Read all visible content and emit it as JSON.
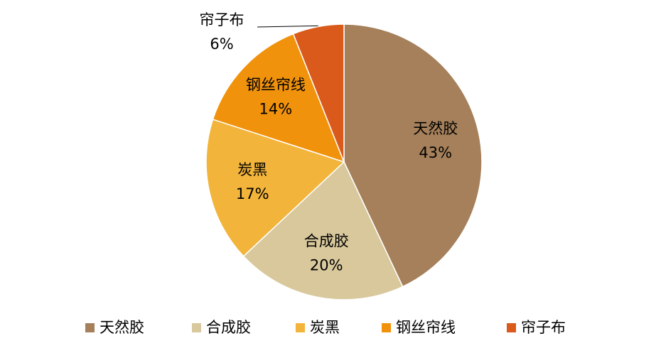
{
  "chart_data": {
    "type": "pie",
    "categories": [
      "天然胶",
      "合成胶",
      "炭黑",
      "钢丝帘线",
      "帘子布"
    ],
    "values": [
      43,
      20,
      17,
      14,
      6
    ],
    "value_labels": [
      "43%",
      "20%",
      "17%",
      "14%",
      "6%"
    ],
    "colors": [
      "#A5805A",
      "#D8C89C",
      "#F2B43A",
      "#F0920C",
      "#D95A1A"
    ],
    "legend": "bottom"
  }
}
